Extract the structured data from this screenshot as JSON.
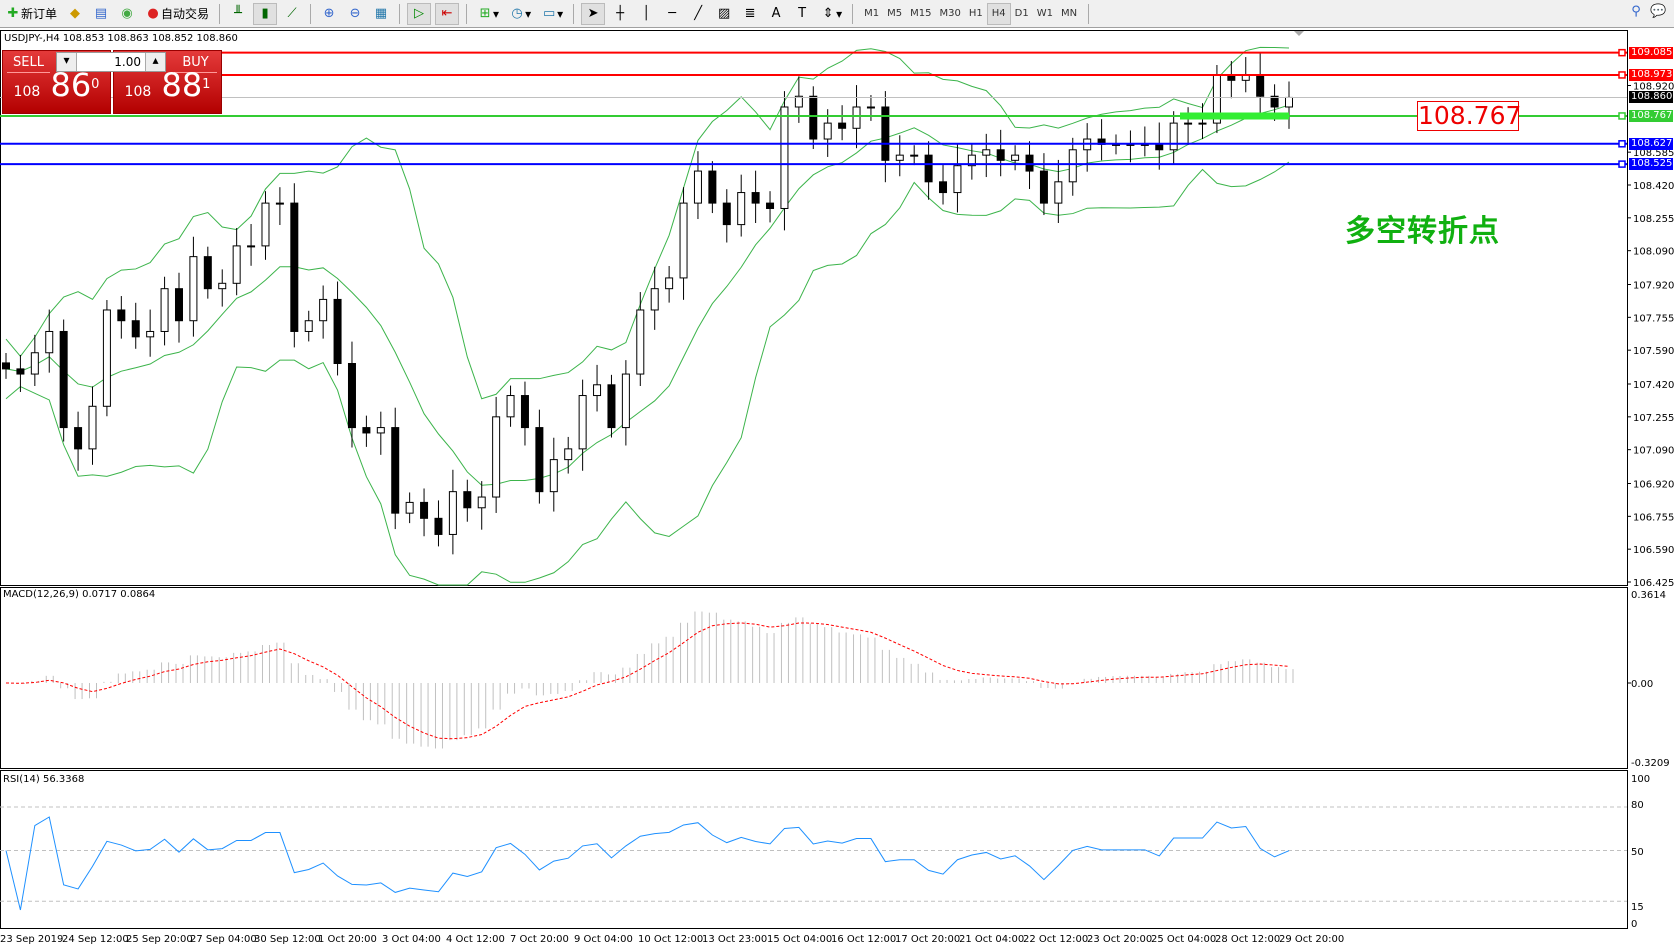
{
  "toolbar": {
    "new_order": "新订单",
    "auto_trading": "自动交易",
    "timeframes": [
      "M1",
      "M5",
      "M15",
      "M30",
      "H1",
      "H4",
      "D1",
      "W1",
      "MN"
    ],
    "active_timeframe": "H4"
  },
  "chart": {
    "symbol_line": "USDJPY-,H4  108.853 108.863 108.852 108.860",
    "trade": {
      "sell_label": "SELL",
      "buy_label": "BUY",
      "lot": "1.00",
      "sell_small": "108",
      "sell_big": "86",
      "sell_sup": "0",
      "buy_small": "108",
      "buy_big": "88",
      "buy_sup": "1"
    },
    "annotation_price": "108.767",
    "annotation_text": "多空转折点",
    "colors": {
      "bull_bear": "#000000",
      "bands": "#3cb44b",
      "resistance": "#ff0000",
      "support_green": "#33cc33",
      "support_blue": "#0000ff",
      "macd_signal": "#ff0000",
      "macd_hist": "#c0c0c0",
      "rsi": "#1e90ff"
    }
  },
  "levels": [
    {
      "price": "109.085",
      "color": "#ff0000"
    },
    {
      "price": "108.973",
      "color": "#ff0000"
    },
    {
      "price": "108.860",
      "color": "#000000"
    },
    {
      "price": "108.767",
      "color": "#33cc33"
    },
    {
      "price": "108.627",
      "color": "#0000ff"
    },
    {
      "price": "108.525",
      "color": "#0000ff"
    }
  ],
  "price_axis": [
    "108.920",
    "108.585",
    "108.420",
    "108.255",
    "108.090",
    "107.920",
    "107.755",
    "107.590",
    "107.420",
    "107.255",
    "107.090",
    "106.920",
    "106.755",
    "106.590",
    "106.425"
  ],
  "macd": {
    "label": "MACD(12,26,9) 0.0717 0.0864",
    "axis": [
      "0.3614",
      "0.00",
      "-0.3209"
    ]
  },
  "rsi": {
    "label": "RSI(14) 56.3368",
    "axis": [
      "100",
      "80",
      "50",
      "15",
      "0"
    ]
  },
  "dates": [
    "23 Sep 2019",
    "24 Sep 12:00",
    "25 Sep 20:00",
    "27 Sep 04:00",
    "30 Sep 12:00",
    "1 Oct 20:00",
    "3 Oct 04:00",
    "4 Oct 12:00",
    "7 Oct 20:00",
    "9 Oct 04:00",
    "10 Oct 12:00",
    "13 Oct 23:00",
    "15 Oct 04:00",
    "16 Oct 12:00",
    "17 Oct 20:00",
    "21 Oct 04:00",
    "22 Oct 12:00",
    "23 Oct 20:00",
    "25 Oct 04:00",
    "28 Oct 12:00",
    "29 Oct 20:00"
  ],
  "chart_data": {
    "type": "candlestick",
    "symbol": "USDJPY",
    "timeframe": "H4",
    "ylim": [
      106.425,
      109.085
    ],
    "close": [
      107.496,
      107.47,
      107.577,
      107.684,
      107.201,
      107.094,
      107.308,
      107.792,
      107.738,
      107.657,
      107.684,
      107.899,
      107.738,
      108.06,
      107.899,
      107.926,
      108.114,
      108.114,
      108.329,
      108.329,
      107.684,
      107.738,
      107.845,
      107.523,
      107.201,
      107.174,
      107.201,
      106.771,
      106.825,
      106.745,
      106.664,
      106.879,
      106.798,
      106.852,
      107.255,
      107.362,
      107.201,
      106.879,
      107.04,
      107.094,
      107.362,
      107.416,
      107.201,
      107.47,
      107.792,
      107.899,
      107.953,
      108.329,
      108.49,
      108.329,
      108.221,
      108.382,
      108.329,
      108.302,
      108.812,
      108.866,
      108.651,
      108.731,
      108.705,
      108.812,
      108.812,
      108.544,
      108.57,
      108.57,
      108.436,
      108.382,
      108.517,
      108.57,
      108.597,
      108.544,
      108.57,
      108.49,
      108.329,
      108.436,
      108.597,
      108.651,
      108.624,
      108.624,
      108.624,
      108.624,
      108.597,
      108.731,
      108.731,
      108.731,
      108.973,
      108.946,
      108.973,
      108.866,
      108.812,
      108.86
    ]
  }
}
